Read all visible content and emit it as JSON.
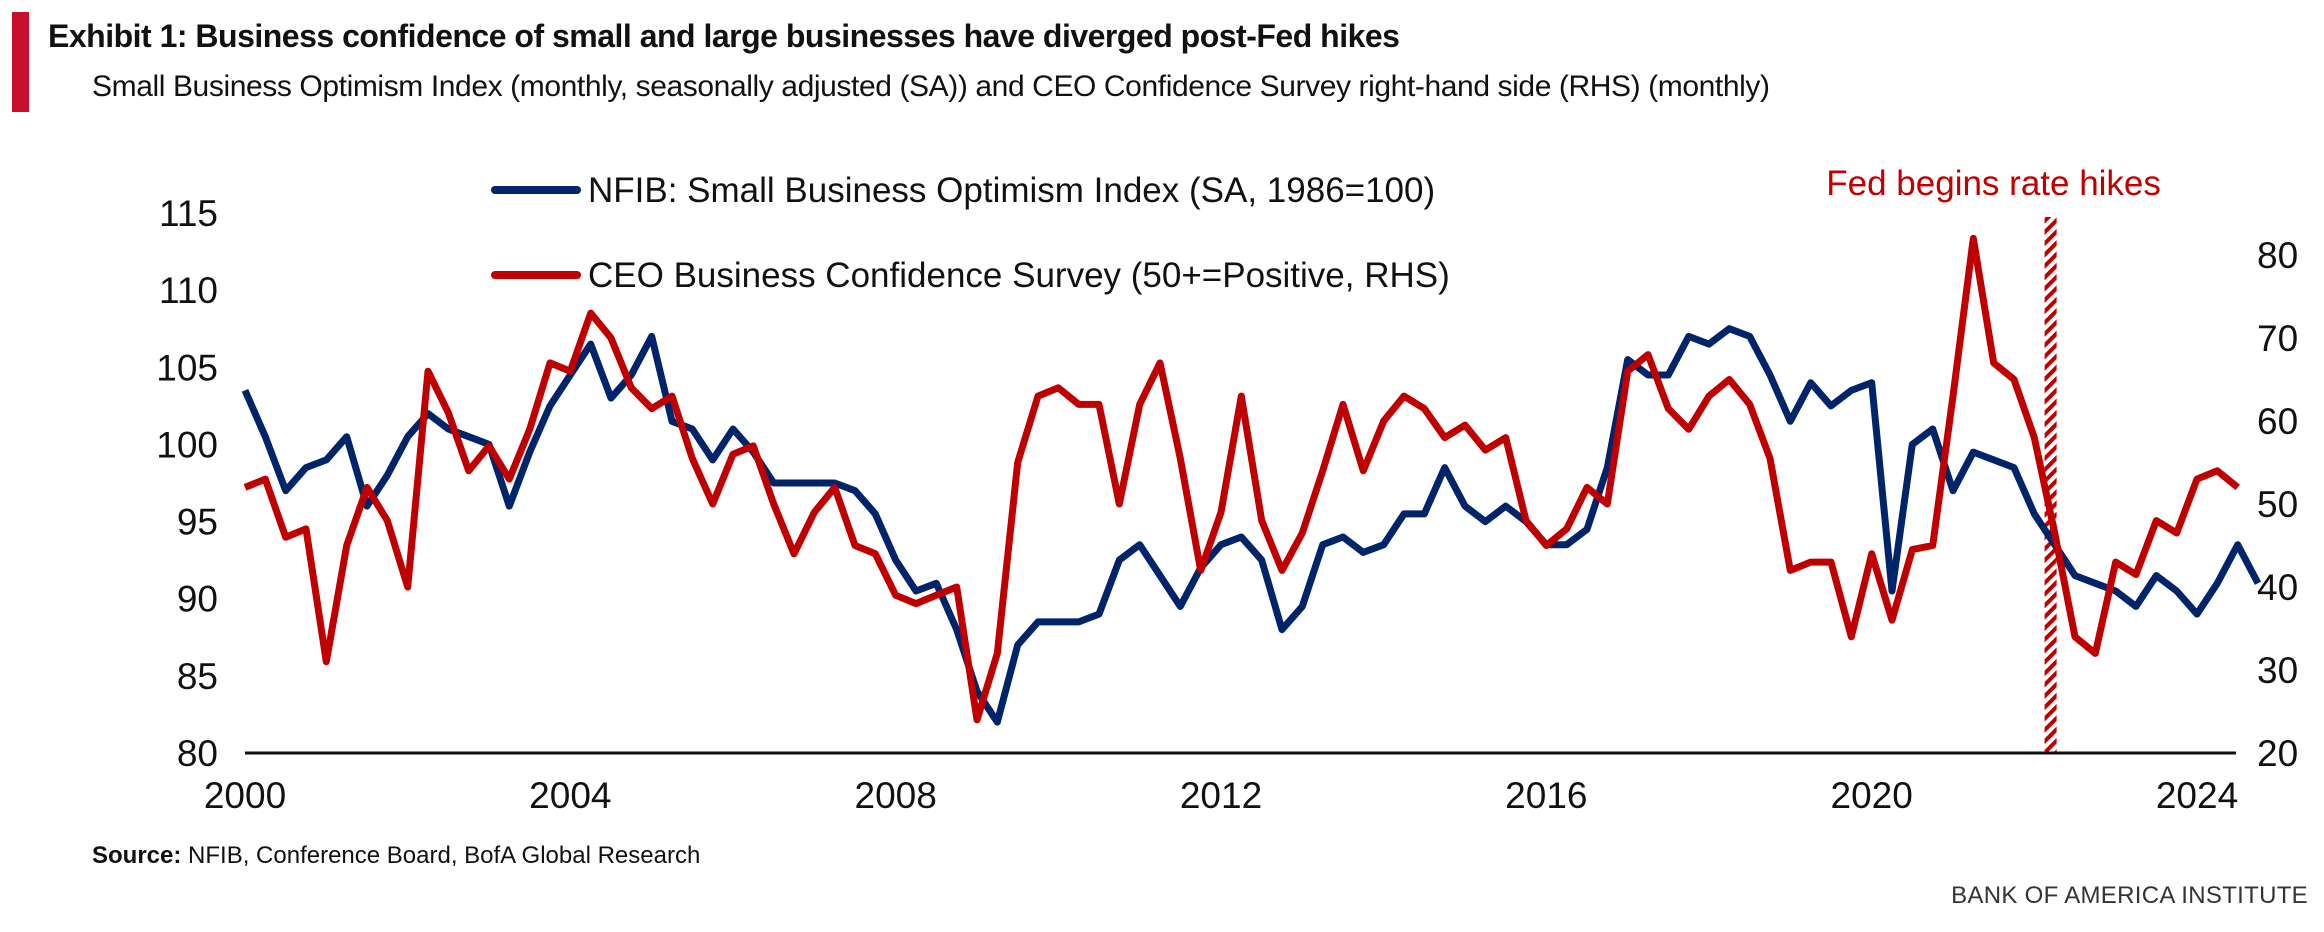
{
  "header": {
    "title": "Exhibit 1: Business confidence of small and large businesses have diverged post-Fed hikes",
    "subtitle": "Small Business Optimism Index (monthly, seasonally adjusted (SA)) and CEO Confidence Survey right-hand side (RHS) (monthly)"
  },
  "footer": {
    "source_label": "Source:",
    "source_text": "NFIB, Conference Board, BofA Global Research",
    "brand": "BANK OF AMERICA INSTITUTE"
  },
  "chart_data": {
    "type": "line",
    "title": "Exhibit 1: Business confidence of small and large businesses have diverged post-Fed hikes",
    "xlim": [
      2000,
      2024.9
    ],
    "x_ticks": [
      "2000",
      "2004",
      "2008",
      "2012",
      "2016",
      "2020",
      "2024"
    ],
    "y_left": {
      "range": [
        80,
        115
      ],
      "ticks": [
        "80",
        "85",
        "90",
        "95",
        "100",
        "105",
        "110",
        "115"
      ]
    },
    "y_right": {
      "range": [
        20,
        80
      ],
      "ticks": [
        "20",
        "30",
        "40",
        "50",
        "60",
        "70",
        "80"
      ]
    },
    "legend_placement": "top-center",
    "annotation": {
      "label": "Fed begins rate hikes",
      "x": 2022.2,
      "color": "#c00000"
    },
    "series": [
      {
        "name": "NFIB: Small Business Optimism Index (SA, 1986=100)",
        "axis": "left",
        "color": "#002469",
        "start": 2000.0,
        "step": 0.25,
        "values": [
          103.5,
          100.5,
          97,
          98.5,
          99,
          100.5,
          96,
          98,
          100.5,
          102,
          101,
          100.5,
          100,
          96,
          99.5,
          102.5,
          104.5,
          106.5,
          103,
          104.5,
          107,
          101.5,
          101,
          99,
          101,
          99.5,
          97.5,
          97.5,
          97.5,
          97.5,
          97,
          95.5,
          92.5,
          90.5,
          91,
          88,
          84,
          82,
          87,
          88.5,
          88.5,
          88.5,
          89,
          92.5,
          93.5,
          91.5,
          89.5,
          92,
          93.5,
          94,
          92.5,
          88,
          89.5,
          93.5,
          94,
          93,
          93.5,
          95.5,
          95.5,
          98.5,
          96,
          95,
          96,
          95,
          93.5,
          93.5,
          94.5,
          98.5,
          105.5,
          104.5,
          104.5,
          107,
          106.5,
          107.5,
          107,
          104.5,
          101.5,
          104,
          102.5,
          103.5,
          104,
          90.5,
          100,
          101,
          97,
          99.5,
          99,
          98.5,
          95.5,
          93.5,
          91.5,
          91,
          90.5,
          89.5,
          91.5,
          90.5,
          89,
          91,
          93.5,
          91
        ]
      },
      {
        "name": "CEO Business Confidence Survey (50+=Positive, RHS)",
        "axis": "right",
        "color": "#c00000",
        "start": 2000.0,
        "step": 0.25,
        "values": [
          52,
          53,
          46,
          47,
          31,
          45,
          52,
          48,
          40,
          66,
          61,
          54,
          57,
          53,
          59,
          67,
          66,
          73,
          70,
          64,
          61.5,
          63,
          55.5,
          50,
          56,
          57,
          50,
          44,
          49,
          52,
          45,
          44,
          39,
          38,
          39,
          40,
          24,
          32,
          55,
          63,
          64,
          62,
          62,
          50,
          62,
          67,
          55.5,
          42,
          49,
          63,
          48,
          42,
          46.5,
          54,
          62,
          54,
          60,
          63,
          61.5,
          58,
          59.5,
          56.5,
          58,
          48,
          45,
          47,
          52,
          50,
          66,
          68,
          61.5,
          59,
          63,
          65,
          62,
          55.5,
          42,
          43,
          43,
          34,
          44,
          36,
          44.5,
          45,
          63,
          82,
          67,
          65,
          58,
          46.5,
          34,
          32,
          43,
          41.5,
          48,
          46.5,
          53,
          54,
          52
        ]
      }
    ]
  }
}
